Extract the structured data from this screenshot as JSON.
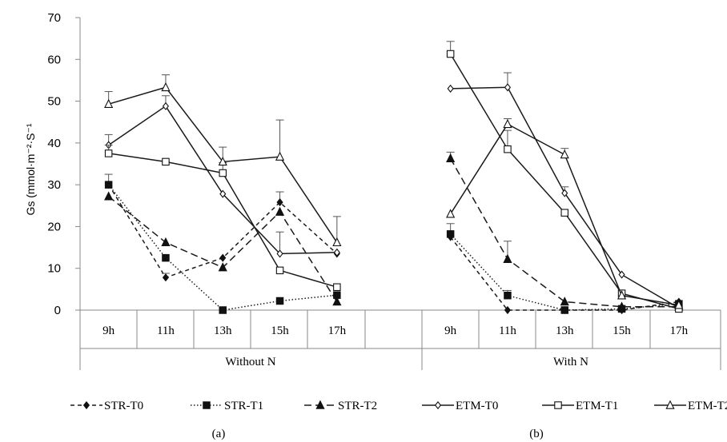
{
  "chart_data": {
    "type": "line",
    "ylabel": "Gs (mmol·m⁻²·S⁻¹",
    "ylim": [
      0,
      70
    ],
    "yticks": [
      0,
      10,
      20,
      30,
      40,
      50,
      60,
      70
    ],
    "grid": false,
    "legend_position": "bottom",
    "groups": [
      {
        "name": "Without N",
        "panel_label": "(a)",
        "categories": [
          "9h",
          "11h",
          "13h",
          "15h",
          "17h"
        ],
        "series": [
          {
            "name": "STR-T0",
            "values": [
              30,
              7.8,
              12.5,
              25.8,
              13.5
            ],
            "errors": [
              2.5,
              1.0,
              0,
              2.5,
              0
            ]
          },
          {
            "name": "STR-T1",
            "values": [
              30,
              12.5,
              0,
              2.2,
              3.6
            ],
            "errors": [
              0,
              0,
              0,
              0,
              0
            ]
          },
          {
            "name": "STR-T2",
            "values": [
              27.2,
              16.2,
              10.2,
              23.5,
              2.0
            ],
            "errors": [
              0,
              0,
              0,
              0,
              0
            ]
          },
          {
            "name": "ETM-T0",
            "values": [
              39.5,
              48.8,
              27.8,
              13.5,
              13.8
            ],
            "errors": [
              2.5,
              2.5,
              0,
              5.2,
              0
            ]
          },
          {
            "name": "ETM-T1",
            "values": [
              37.5,
              35.5,
              32.8,
              9.5,
              5.5
            ],
            "errors": [
              2.0,
              0,
              2.5,
              0,
              0
            ]
          },
          {
            "name": "ETM-T2",
            "values": [
              49.3,
              53.3,
              35.5,
              36.7,
              16.2
            ],
            "errors": [
              3.0,
              3.0,
              3.5,
              8.8,
              6.2
            ]
          }
        ]
      },
      {
        "name": "With N",
        "panel_label": "(b)",
        "categories": [
          "9h",
          "11h",
          "13h",
          "15h",
          "17h"
        ],
        "series": [
          {
            "name": "STR-T0",
            "values": [
              17.5,
              0,
              0,
              0,
              2.0
            ],
            "errors": [
              0,
              0,
              0,
              0,
              0
            ]
          },
          {
            "name": "STR-T1",
            "values": [
              18.2,
              3.5,
              0,
              0.3,
              1.5
            ],
            "errors": [
              2.5,
              1.2,
              0,
              0,
              0
            ]
          },
          {
            "name": "STR-T2",
            "values": [
              36.3,
              12.2,
              2.0,
              0.8,
              0.8
            ],
            "errors": [
              1.5,
              4.3,
              0,
              0,
              0
            ]
          },
          {
            "name": "ETM-T0",
            "values": [
              53,
              53.3,
              28.0,
              8.5,
              0.5
            ],
            "errors": [
              0,
              3.5,
              1.5,
              0,
              0
            ]
          },
          {
            "name": "ETM-T1",
            "values": [
              61.3,
              38.5,
              23.3,
              4.0,
              0.3
            ],
            "errors": [
              3.0,
              4.5,
              0,
              0,
              0
            ]
          },
          {
            "name": "ETM-T2",
            "values": [
              23.0,
              44.5,
              37.2,
              3.5,
              1.2
            ],
            "errors": [
              0,
              1.3,
              1.5,
              0,
              0
            ]
          }
        ]
      }
    ],
    "legend": [
      "STR-T0",
      "STR-T1",
      "STR-T2",
      "ETM-T0",
      "ETM-T1",
      "ETM-T2"
    ]
  },
  "styles": {
    "STR-T0": {
      "dash": "5,4",
      "marker": "diamond",
      "fill": "#111111",
      "width": 1.5
    },
    "STR-T1": {
      "dash": "1.5,2.5",
      "marker": "square",
      "fill": "#111111",
      "width": 1.5
    },
    "STR-T2": {
      "dash": "9,5",
      "marker": "triangle",
      "fill": "#111111",
      "width": 1.5
    },
    "ETM-T0": {
      "dash": "",
      "marker": "diamond",
      "fill": "#ffffff",
      "width": 1.5
    },
    "ETM-T1": {
      "dash": "",
      "marker": "square",
      "fill": "#ffffff",
      "width": 1.5
    },
    "ETM-T2": {
      "dash": "",
      "marker": "triangle",
      "fill": "#ffffff",
      "width": 1.5
    }
  }
}
